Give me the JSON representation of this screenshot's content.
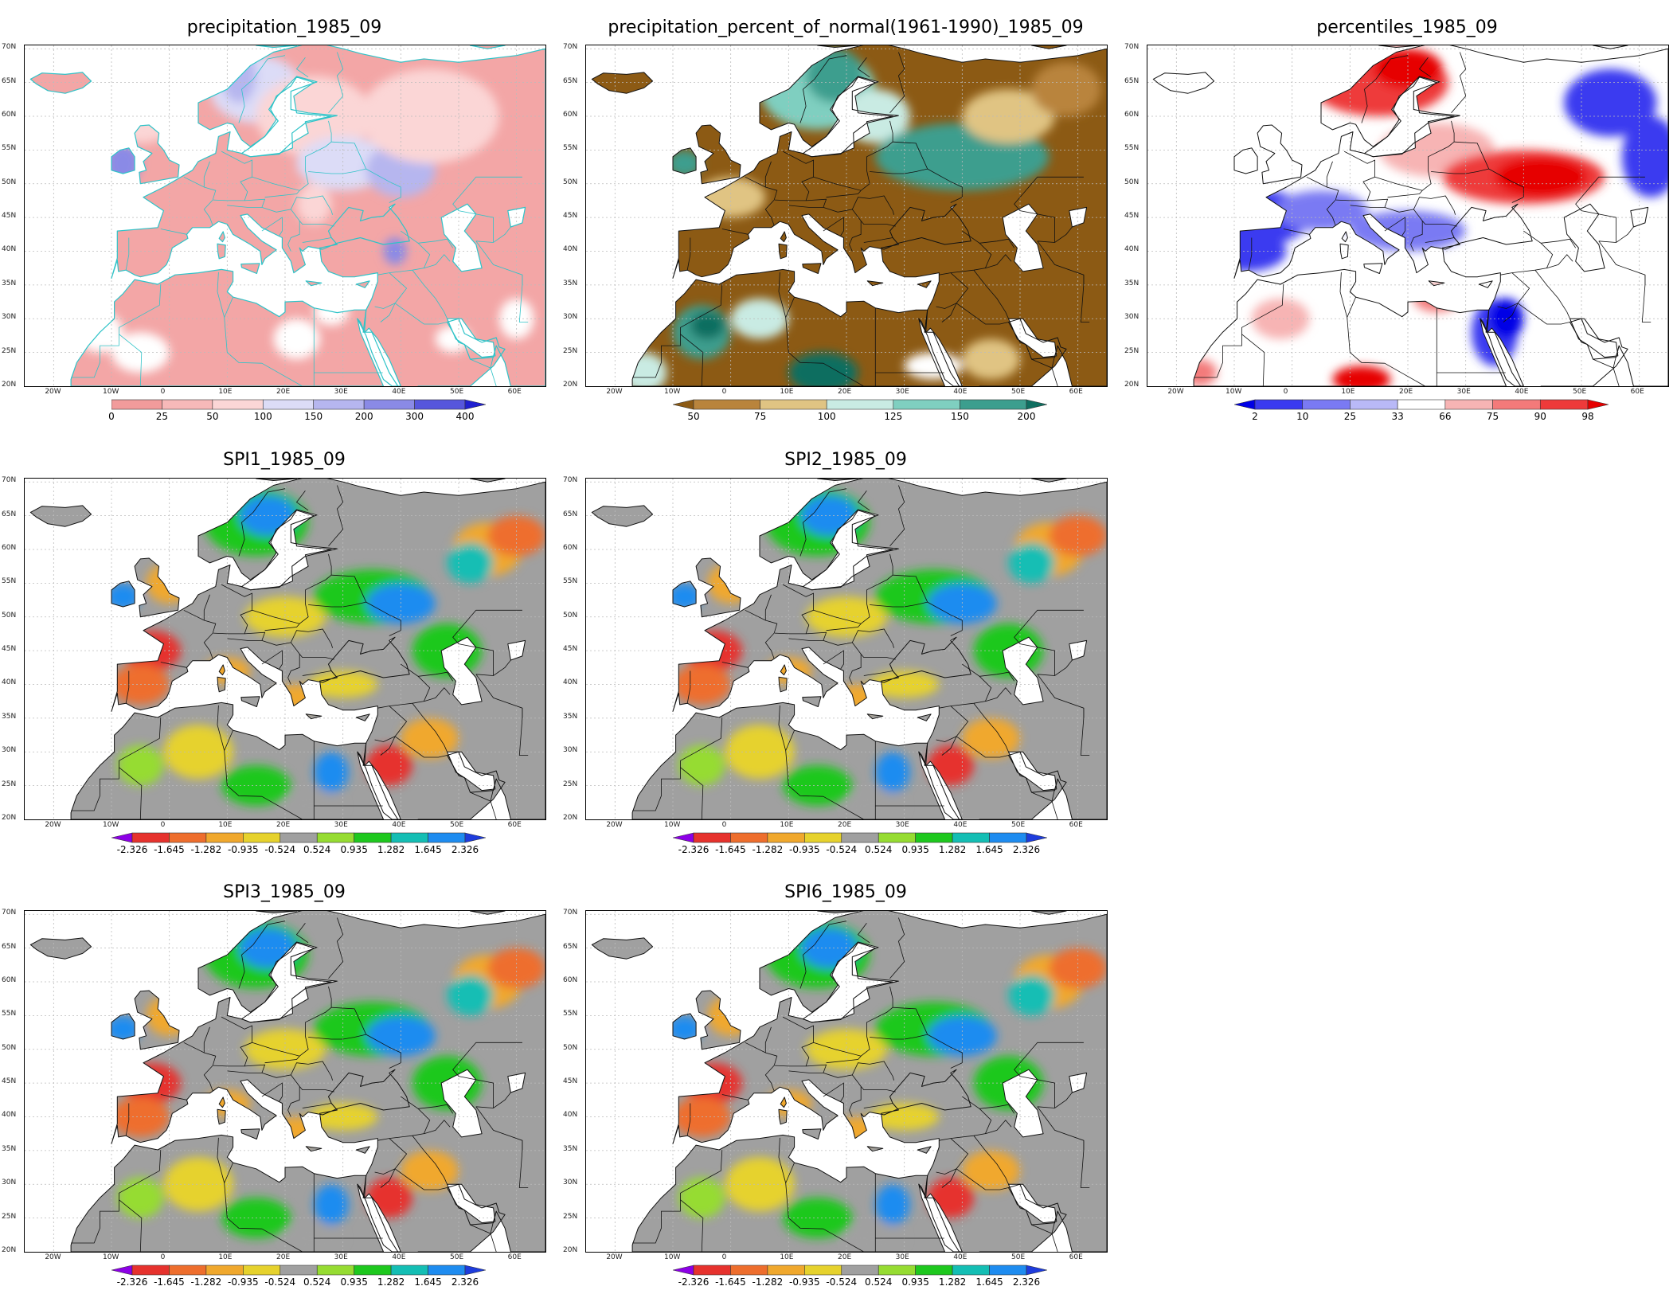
{
  "panels": [
    {
      "id": "precip",
      "title": "precipitation_1985_09",
      "scheme": "precip",
      "colorbar": {
        "colors": [
          "#f29b9b",
          "#f7b9b9",
          "#fbd6d6",
          "#dcdcf7",
          "#b6b6ef",
          "#8a8ae6",
          "#5656dc",
          "#2020d0"
        ],
        "labels": [
          "0",
          "25",
          "50",
          "100",
          "150",
          "200",
          "300",
          "400"
        ],
        "arrow_left": false,
        "arrow_right": true
      }
    },
    {
      "id": "pct-normal",
      "title": "precipitation_percent_of_normal(1961-1990)_1985_09",
      "scheme": "pct",
      "colorbar": {
        "colors": [
          "#8c5a14",
          "#b9843c",
          "#e0c483",
          "#c9ebe3",
          "#7fcfc0",
          "#3c9e8e",
          "#0f6e60"
        ],
        "labels": [
          "50",
          "75",
          "100",
          "125",
          "150",
          "200"
        ],
        "arrow_left": true,
        "arrow_right": true
      }
    },
    {
      "id": "percentiles",
      "title": "percentiles_1985_09",
      "scheme": "pctile",
      "colorbar": {
        "colors": [
          "#0000e6",
          "#3a3af0",
          "#7a7af3",
          "#b9b9f7",
          "#ffffff",
          "#f7b4b4",
          "#f37a7a",
          "#ee3a3a",
          "#e60000"
        ],
        "labels": [
          "2",
          "10",
          "25",
          "33",
          "66",
          "75",
          "90",
          "98"
        ],
        "arrow_left": true,
        "arrow_right": true
      }
    },
    {
      "id": "spi1",
      "title": "SPI1_1985_09",
      "scheme": "spi",
      "colorbar": {
        "colors": [
          "#8c00e6",
          "#e6322d",
          "#ee6e2d",
          "#f0a82d",
          "#e6d22d",
          "#a0a0a0",
          "#96dc32",
          "#1ec81e",
          "#14beb4",
          "#1e8cf0",
          "#1e3cdc"
        ],
        "labels": [
          "-2.326",
          "-1.645",
          "-1.282",
          "-0.935",
          "-0.524",
          "0.524",
          "0.935",
          "1.282",
          "1.645",
          "2.326"
        ],
        "arrow_left": true,
        "arrow_right": true
      }
    },
    {
      "id": "spi2",
      "title": "SPI2_1985_09",
      "scheme": "spi",
      "colorbar": {
        "colors": [
          "#8c00e6",
          "#e6322d",
          "#ee6e2d",
          "#f0a82d",
          "#e6d22d",
          "#a0a0a0",
          "#96dc32",
          "#1ec81e",
          "#14beb4",
          "#1e8cf0",
          "#1e3cdc"
        ],
        "labels": [
          "-2.326",
          "-1.645",
          "-1.282",
          "-0.935",
          "-0.524",
          "0.524",
          "0.935",
          "1.282",
          "1.645",
          "2.326"
        ],
        "arrow_left": true,
        "arrow_right": true
      }
    },
    {
      "id": "spi3",
      "title": "SPI3_1985_09",
      "scheme": "spi",
      "colorbar": {
        "colors": [
          "#8c00e6",
          "#e6322d",
          "#ee6e2d",
          "#f0a82d",
          "#e6d22d",
          "#a0a0a0",
          "#96dc32",
          "#1ec81e",
          "#14beb4",
          "#1e8cf0",
          "#1e3cdc"
        ],
        "labels": [
          "-2.326",
          "-1.645",
          "-1.282",
          "-0.935",
          "-0.524",
          "0.524",
          "0.935",
          "1.282",
          "1.645",
          "2.326"
        ],
        "arrow_left": true,
        "arrow_right": true
      }
    },
    {
      "id": "spi6",
      "title": "SPI6_1985_09",
      "scheme": "spi",
      "colorbar": {
        "colors": [
          "#8c00e6",
          "#e6322d",
          "#ee6e2d",
          "#f0a82d",
          "#e6d22d",
          "#a0a0a0",
          "#96dc32",
          "#1ec81e",
          "#14beb4",
          "#1e8cf0",
          "#1e3cdc"
        ],
        "labels": [
          "-2.326",
          "-1.645",
          "-1.282",
          "-0.935",
          "-0.524",
          "0.524",
          "0.935",
          "1.282",
          "1.645",
          "2.326"
        ],
        "arrow_left": true,
        "arrow_right": true
      }
    }
  ],
  "map_axes": {
    "lat_labels": [
      "70N",
      "65N",
      "60N",
      "55N",
      "50N",
      "45N",
      "40N",
      "35N",
      "30N",
      "25N",
      "20N"
    ],
    "lon_labels": [
      "20W",
      "10W",
      "0",
      "10E",
      "20E",
      "30E",
      "40E",
      "50E",
      "60E"
    ]
  }
}
